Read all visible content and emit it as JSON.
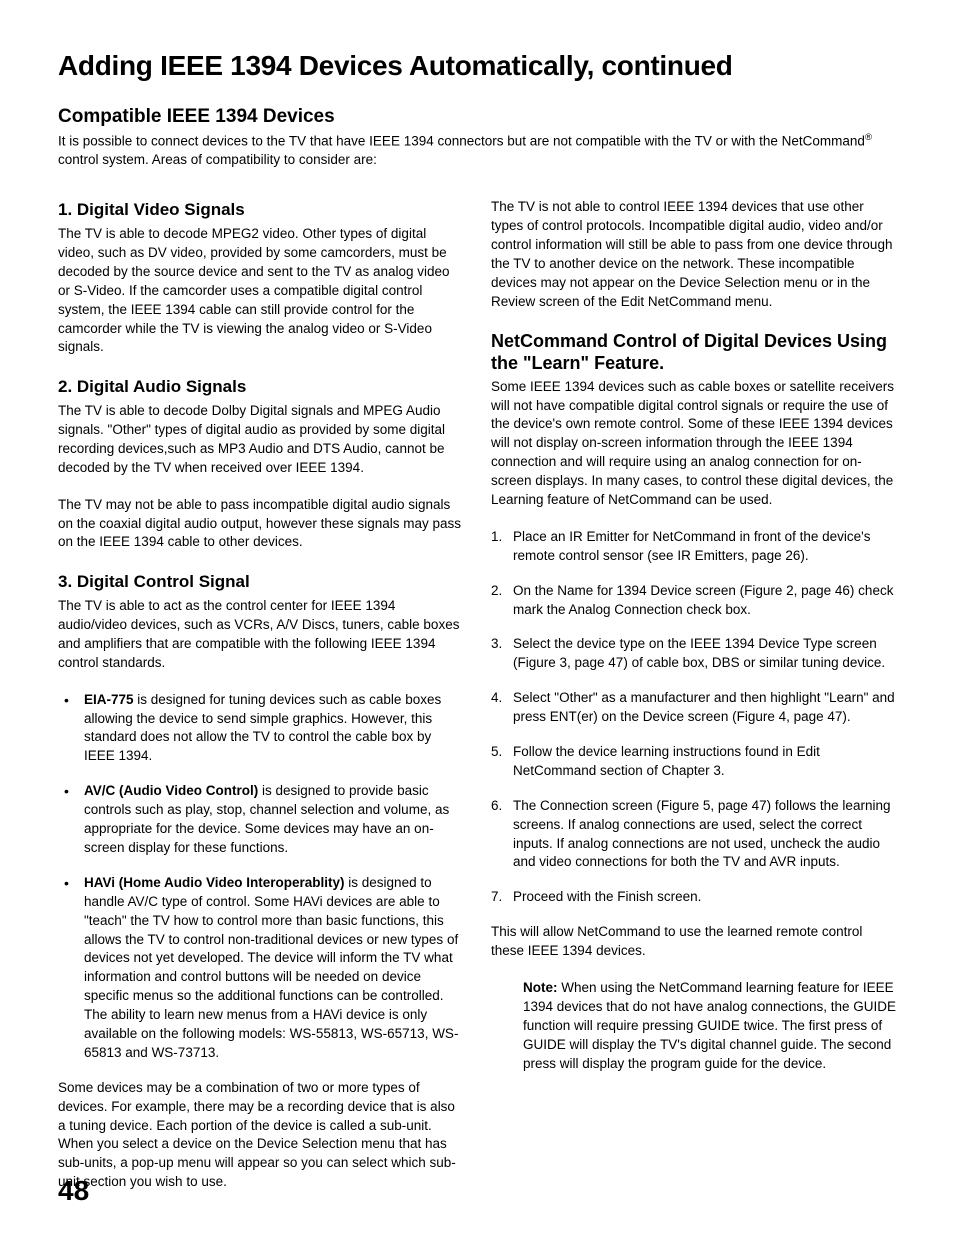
{
  "pageNumber": "48",
  "title": "Adding IEEE 1394 Devices Automatically, continued",
  "intro": {
    "heading": "Compatible IEEE 1394 Devices",
    "text_a": "It is possible to connect devices to the TV that have IEEE 1394 connectors but are not compatible with the TV or with the NetCommand",
    "reg": "®",
    "text_b": " control system.  Areas of compatibility to consider are:"
  },
  "left": {
    "s1": {
      "heading": "1.  Digital Video Signals",
      "p": "The TV is able to decode MPEG2 video.  Other types of digital video, such as DV video, provided by some camcorders, must be decoded by the source device and sent to the TV as analog video or S-Video.  If the camcorder uses a compatible digital control system, the IEEE 1394 cable can still provide control for the camcorder while the TV is viewing the analog video or S-Video signals."
    },
    "s2": {
      "heading": "2.  Digital Audio Signals",
      "p1": "The TV is able to decode Dolby Digital signals and MPEG Audio signals.  \"Other\" types of digital audio as provided by some digital recording devices,such as MP3 Audio and DTS Audio, cannot be decoded by the TV when received over IEEE 1394.",
      "p2": "The TV may not be able to pass incompatible digital audio signals on the coaxial digital audio output, however these signals may pass on the IEEE 1394 cable to other devices."
    },
    "s3": {
      "heading": "3.  Digital Control Signal",
      "intro": "The TV is able to act as the control center for IEEE 1394 audio/video devices, such as VCRs, A/V Discs, tuners, cable boxes and amplifiers that are compatible with the following IEEE 1394 control standards.",
      "b1_bold": "EIA-775",
      "b1_rest": " is designed for tuning devices such as cable boxes allowing the device to send simple graphics.  However, this standard does not allow the TV to control the cable box by IEEE 1394.",
      "b2_bold": "AV/C (Audio Video Control)",
      "b2_rest": " is designed to provide basic controls such as play, stop, channel selection and volume, as appropriate for the device.  Some devices may have an on-screen display for these functions.",
      "b3_bold": "HAVi (Home Audio Video Interoperablity)",
      "b3_rest": " is designed to handle AV/C type of control.  Some HAVi devices are able to \"teach\" the TV how to control more than basic functions, this allows the TV to control non-traditional devices or new types of devices not yet developed.  The device will inform the TV what information and control buttons will be needed on device specific menus so the additional functions can be controlled.  The ability to learn new menus from a HAVi device is only available  on the following models:  WS-55813, WS-65713, WS-65813 and WS-73713.",
      "tail": "Some devices may be a combination of two or more types of devices.  For example, there may be a recording device that is also a tuning device.  Each portion of the device is called a sub-unit.  When you select a device on the Device Selection menu that has sub-units, a pop-up menu will appear so you can select which sub-unit section you wish to use."
    }
  },
  "right": {
    "top": "The TV is not able to control IEEE 1394 devices that use other types of control protocols.  Incompatible digital audio, video and/or control information will still be able to pass from one device through the TV to another device on the network.  These incompatible devices may not appear on the Device Selection menu or in the Review screen of the Edit NetCommand menu.",
    "heading": "NetCommand Control of Digital Devices Using the \"Learn\" Feature.",
    "intro": "Some IEEE 1394 devices such as cable boxes or satellite receivers will not have compatible digital control signals or require the use of the device's own remote control.  Some of these IEEE 1394 devices will not display on-screen information through the IEEE 1394 connection and will require using an analog connection for on-screen displays.  In many cases, to control these digital devices, the Learning feature of NetCommand can be used.",
    "steps": {
      "n1": "Place an IR Emitter for NetCommand in front of the device's remote control sensor (see IR Emitters, page 26).",
      "n2": "On the Name for 1394 Device screen (Figure 2, page 46) check mark the Analog Connection check box.",
      "n3": "Select the device type on the IEEE 1394 Device Type screen (Figure 3, page 47) of cable box, DBS or similar tuning device.",
      "n4": "Select \"Other\" as a manufacturer and then highlight \"Learn\" and press ENT(er) on the Device screen (Figure 4, page 47).",
      "n5": "Follow the device learning instructions found in Edit NetCommand section of Chapter 3.",
      "n6": "The Connection screen (Figure 5, page 47) follows the learning screens.  If analog connections are used, select the correct inputs.  If analog connections are not used, uncheck the audio and video connections for both the TV and AVR inputs.",
      "n7": "Proceed with the Finish screen."
    },
    "closing": "This will allow NetCommand to use the learned remote control these IEEE 1394 devices.",
    "note_bold": "Note:",
    "note_rest": " When using the NetCommand learning feature for IEEE 1394 devices that do not have analog connections, the GUIDE function will require pressing GUIDE twice.  The first press of GUIDE will display the TV's digital channel guide.  The second press will display the program guide for the device."
  }
}
